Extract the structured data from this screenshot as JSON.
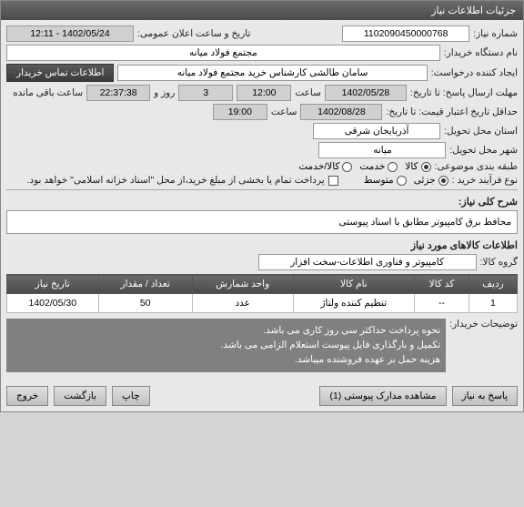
{
  "titlebar": "جزئیات اطلاعات نیاز",
  "labels": {
    "need_no": "شماره نیاز:",
    "pub_datetime": "تاریخ و ساعت اعلان عمومی:",
    "buyer": "نام دستگاه خریدار:",
    "requester": "ایجاد کننده درخواست:",
    "contact_btn": "اطلاعات تماس خریدار",
    "deadline": "مهلت ارسال پاسخ: تا تاریخ:",
    "hour": "ساعت",
    "remaining": "ساعت باقی مانده",
    "validity": "حداقل تاریخ اعتبار قیمت: تا تاریخ:",
    "province": "استان محل تحویل:",
    "city": "شهر محل تحویل:",
    "category": "طبقه بندی موضوعی:",
    "goods": "کالا",
    "service": "خدمت",
    "goods_service": "کالا/خدمت",
    "purchase_type": "نوع فرآیند خرید :",
    "partial": "جزئی",
    "medium": "متوسط",
    "payment_note": "پرداخت تمام یا بخشی از مبلغ خرید،از محل \"اسناد خزانه اسلامی\" خواهد بود.",
    "need_desc_title": "شرح کلی نیاز:",
    "items_title": "اطلاعات کالاهای مورد نیاز",
    "item_group": "گروه کالا:",
    "buyer_notes_lbl": "توضیحات خریدار:"
  },
  "values": {
    "need_no": "1102090450000768",
    "pub_datetime": "1402/05/24 - 12:11",
    "buyer": "مجتمع فولاد میانه",
    "requester": "سامان طالشی کارشناس خرید مجتمع فولاد میانه",
    "deadline_date": "1402/05/28",
    "deadline_time": "12:00",
    "days_count": "3",
    "remaining_time": "22:37:38",
    "validity_date": "1402/08/28",
    "validity_time": "19:00",
    "province": "آذربایجان شرقی",
    "city": "میانه",
    "need_desc": "محافظ برق کامپیوتر مطابق با اسناد پیوستی",
    "item_group": "کامپیوتر و فناوری اطلاعات-سخت افزار",
    "buyer_notes": "نحوه پرداخت حداکثر سی روز کاری می باشد.\nتکمیل و بارگذاری فایل پیوست استعلام الزامی می باشد.\nهزینه حمل بر عهده فروشنده میباشد."
  },
  "table": {
    "headers": [
      "ردیف",
      "کد کالا",
      "نام کالا",
      "واحد شمارش",
      "تعداد / مقدار",
      "تاریخ نیاز"
    ],
    "rows": [
      {
        "n": "1",
        "code": "--",
        "name": "تنظیم کننده ولتاژ",
        "unit": "عدد",
        "qty": "50",
        "date": "1402/05/30"
      }
    ]
  },
  "footer": {
    "respond": "پاسخ به نیاز",
    "attachments": "مشاهده مدارک پیوستی (1)",
    "print": "چاپ",
    "back": "بازگشت",
    "exit": "خروج"
  },
  "colors": {
    "titlebar_bg": "#555555",
    "field_bg": "#ffffff",
    "gray_bg": "#d0d0d0",
    "notes_bg": "#808080"
  }
}
